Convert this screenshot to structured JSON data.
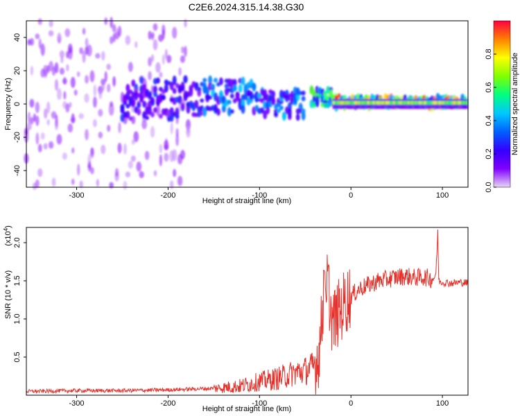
{
  "title": "C2E6.2024.315.14.38.G30",
  "chart_data": [
    {
      "type": "heatmap",
      "name": "spectrogram",
      "xlabel": "Height of straight line (km)",
      "ylabel": "Frequency (Hz)",
      "xlim": [
        -355,
        128
      ],
      "ylim": [
        -50,
        50
      ],
      "xticks": [
        -300,
        -200,
        -100,
        0,
        100
      ],
      "yticks": [
        -40,
        -20,
        0,
        20,
        40
      ],
      "colorbar": {
        "label": "Normalized spectral amplitude",
        "range": [
          0,
          1
        ],
        "ticks": [
          0.0,
          0.2,
          0.4,
          0.6,
          0.8
        ],
        "colors": [
          "#e9d7f5",
          "#8000ff",
          "#3300ff",
          "#0060ff",
          "#00c8ff",
          "#00ff80",
          "#80ff00",
          "#ffff00",
          "#ff8000",
          "#ff0040"
        ]
      },
      "bands": [
        {
          "x_from": -355,
          "x_to": -175,
          "center_hz": 0,
          "spread_hz": 50,
          "amplitude": 0.08
        },
        {
          "x_from": -250,
          "x_to": -160,
          "center_hz": 3,
          "spread_hz": 12,
          "amplitude": 0.2
        },
        {
          "x_from": -160,
          "x_to": -100,
          "center_hz": 5,
          "spread_hz": 10,
          "amplitude": 0.3
        },
        {
          "x_from": -100,
          "x_to": -50,
          "center_hz": 0,
          "spread_hz": 8,
          "amplitude": 0.3
        },
        {
          "x_from": -45,
          "x_to": -20,
          "center_hz": 4,
          "spread_hz": 5,
          "amplitude": 0.45
        },
        {
          "x_from": -20,
          "x_to": 128,
          "center_hz": 1,
          "spread_hz": 3,
          "amplitude": 0.6
        }
      ]
    },
    {
      "type": "line",
      "name": "snr",
      "xlabel": "Height of straight line (km)",
      "ylabel": "SNR (10 * v/v)",
      "multiplier_label": "(x10",
      "multiplier_exp": "4",
      "xlim": [
        -355,
        128
      ],
      "ylim": [
        0,
        2.2
      ],
      "xticks": [
        -300,
        -200,
        -100,
        0,
        100
      ],
      "yticks": [
        0.5,
        1.0,
        1.5,
        2.0
      ],
      "color": "#e8302a",
      "series": [
        {
          "x": [
            -355,
            -300,
            -250,
            -200,
            -150,
            -120,
            -100,
            -80,
            -60,
            -50,
            -40,
            -35,
            -30,
            -27,
            -25,
            -22,
            -20,
            -15,
            -10,
            -5,
            0,
            10,
            20,
            30,
            40,
            50,
            60,
            70,
            80,
            90,
            93,
            95,
            96,
            100,
            110,
            120,
            128
          ],
          "values": [
            0.05,
            0.06,
            0.06,
            0.07,
            0.09,
            0.12,
            0.18,
            0.22,
            0.3,
            0.32,
            0.38,
            0.55,
            1.2,
            1.6,
            1.45,
            1.1,
            0.95,
            1.05,
            1.15,
            1.25,
            1.3,
            1.4,
            1.45,
            1.5,
            1.52,
            1.55,
            1.56,
            1.54,
            1.55,
            1.52,
            1.6,
            2.15,
            1.5,
            1.48,
            1.47,
            1.48,
            1.47
          ]
        }
      ]
    }
  ]
}
